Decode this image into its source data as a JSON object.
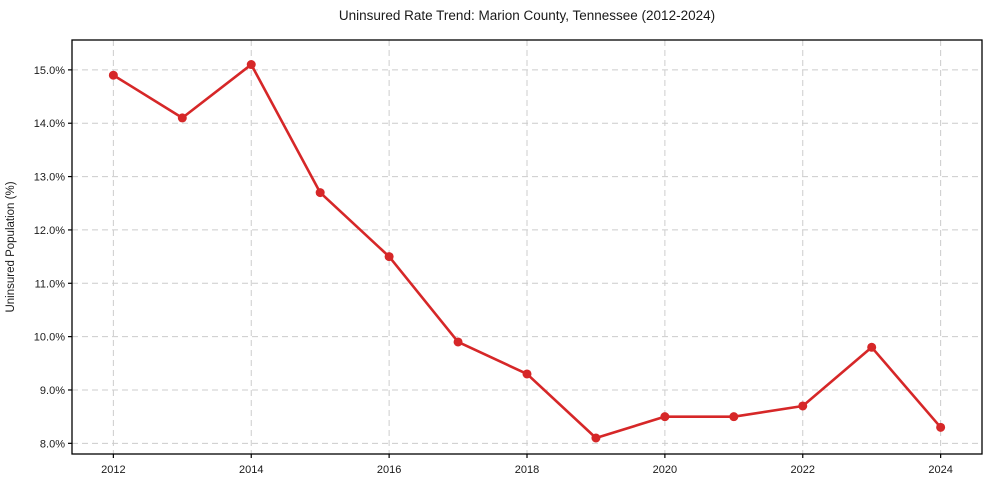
{
  "chart_data": {
    "type": "line",
    "title": "Uninsured Rate Trend: Marion County, Tennessee (2012-2024)",
    "xlabel": "",
    "ylabel": "Uninsured Population (%)",
    "series_name": "Uninsured rate",
    "x": [
      2012,
      2013,
      2014,
      2015,
      2016,
      2017,
      2018,
      2019,
      2020,
      2021,
      2022,
      2023,
      2024
    ],
    "values": [
      14.9,
      14.1,
      15.1,
      12.7,
      11.5,
      9.9,
      9.3,
      8.1,
      8.5,
      8.5,
      8.7,
      9.8,
      8.3
    ],
    "x_ticks": [
      2012,
      2014,
      2016,
      2018,
      2020,
      2022,
      2024
    ],
    "x_tick_labels": [
      "2012",
      "2014",
      "2016",
      "2018",
      "2020",
      "2022",
      "2024"
    ],
    "y_ticks": [
      8,
      9,
      10,
      11,
      12,
      13,
      14,
      15
    ],
    "y_tick_labels": [
      "8.0%",
      "9.0%",
      "10.0%",
      "11.0%",
      "12.0%",
      "13.0%",
      "14.0%",
      "15.0%"
    ],
    "xlim": [
      2011.4,
      2024.6
    ],
    "ylim": [
      7.8,
      15.56
    ],
    "grid": true,
    "grid_style": "dashed",
    "legend": "none",
    "marker": "circle",
    "colors": {
      "line": "#d62728",
      "marker": "#d62728",
      "grid": "#cccccc",
      "spine": "#000000",
      "text": "#1a1a1a",
      "background": "#ffffff"
    }
  }
}
